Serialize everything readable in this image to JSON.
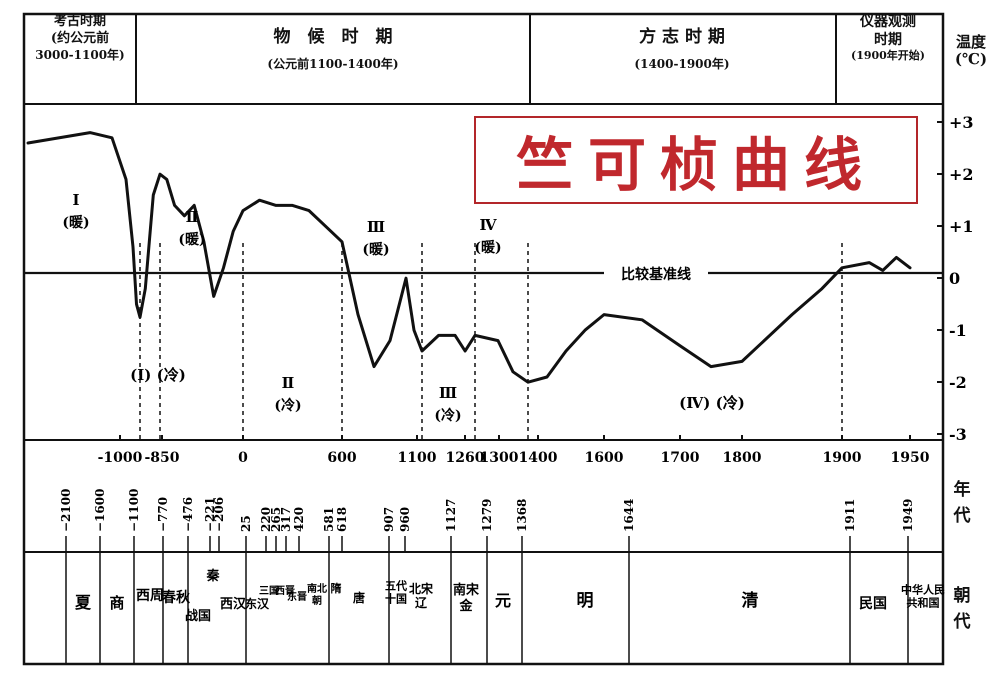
{
  "chart_data": {
    "type": "line",
    "title": "竺可桢曲线",
    "periods": [
      {
        "name": "考古时期",
        "range": "(约公元前",
        "range2": "3000-1100年)"
      },
      {
        "name": "物　候　时　期",
        "range": "(公元前1100-1400年)"
      },
      {
        "name": "方 志 时 期",
        "range": "(1400-1900年)"
      },
      {
        "name": "仪器观测",
        "name2": "时期",
        "range": "(1900年开始)"
      }
    ],
    "ylabel": "温度",
    "yunit": "(℃)",
    "y_ticks": [
      "+3",
      "+2",
      "+1",
      "0",
      "-1",
      "-2",
      "-3"
    ],
    "ylim": [
      -3,
      3
    ],
    "baseline_label": "比较基准线",
    "x_axis_ticks": [
      "-1000",
      "-850",
      "0",
      "600",
      "1100",
      "1260",
      "1300",
      "1400",
      "1600",
      "1700",
      "1800",
      "1900",
      "1950"
    ],
    "series": [
      {
        "x": [
          -3000,
          -2200,
          -1400,
          -1200,
          -1100,
          -1050,
          -1000,
          -960,
          -900,
          -850,
          -780,
          -700,
          -600,
          -500,
          -400,
          -300,
          -200,
          -100,
          0,
          100,
          200,
          300,
          400,
          500,
          600,
          700,
          800,
          900,
          1000,
          1050,
          1100,
          1150,
          1200,
          1230,
          1260,
          1300,
          1350,
          1400,
          1450,
          1500,
          1550,
          1600,
          1650,
          1700,
          1750,
          1800,
          1850,
          1880,
          1900,
          1920,
          1930,
          1940,
          1950
        ],
        "y": [
          2.5,
          2.7,
          2.6,
          1.8,
          0.5,
          -0.6,
          -0.85,
          -0.3,
          1.5,
          1.9,
          1.8,
          1.3,
          1.1,
          1.3,
          0.6,
          -0.45,
          0.1,
          0.8,
          1.2,
          1.4,
          1.3,
          1.3,
          1.2,
          0.9,
          0.6,
          -0.8,
          -1.8,
          -1.3,
          -0.1,
          -1.1,
          -1.5,
          -1.2,
          -1.2,
          -1.5,
          -1.2,
          -1.3,
          -1.9,
          -2.1,
          -2.0,
          -1.5,
          -1.1,
          -0.8,
          -0.9,
          -1.4,
          -1.8,
          -1.7,
          -0.8,
          -0.3,
          0.1,
          0.2,
          0.05,
          0.3,
          0.1
        ]
      }
    ],
    "warm_cold_labels": [
      {
        "roman": "Ⅰ",
        "state": "(暖)"
      },
      {
        "roman": "Ⅱ",
        "state": "(暖)"
      },
      {
        "roman": "Ⅲ",
        "state": "(暖)"
      },
      {
        "roman": "Ⅳ",
        "state": "(暖)"
      },
      {
        "roman": "(Ⅰ)",
        "state": "(冷)"
      },
      {
        "roman": "Ⅱ",
        "state": "(冷)"
      },
      {
        "roman": "Ⅲ",
        "state": "(冷)"
      },
      {
        "roman": "(Ⅳ)",
        "state": "(冷)"
      }
    ],
    "year_label": "年代",
    "dynasty_label": "朝代",
    "era_years": [
      "−2100",
      "−1600",
      "−1100",
      "−770",
      "−476",
      "−221",
      "−206",
      "25",
      "220",
      "265",
      "317",
      "420",
      "581",
      "618",
      "907",
      "960",
      "1127",
      "1279",
      "1368",
      "1644",
      "1911",
      "1949"
    ],
    "dynasties": [
      "夏",
      "商",
      "西周",
      "春秋",
      "秦",
      "战国",
      "西汉",
      "东汉",
      "三国",
      "西晋",
      "东晋",
      "南北朝",
      "隋",
      "唐",
      "五代十国",
      "北宋辽",
      "南宋金",
      "元",
      "明",
      "清",
      "民国",
      "中华人民共和国"
    ]
  }
}
